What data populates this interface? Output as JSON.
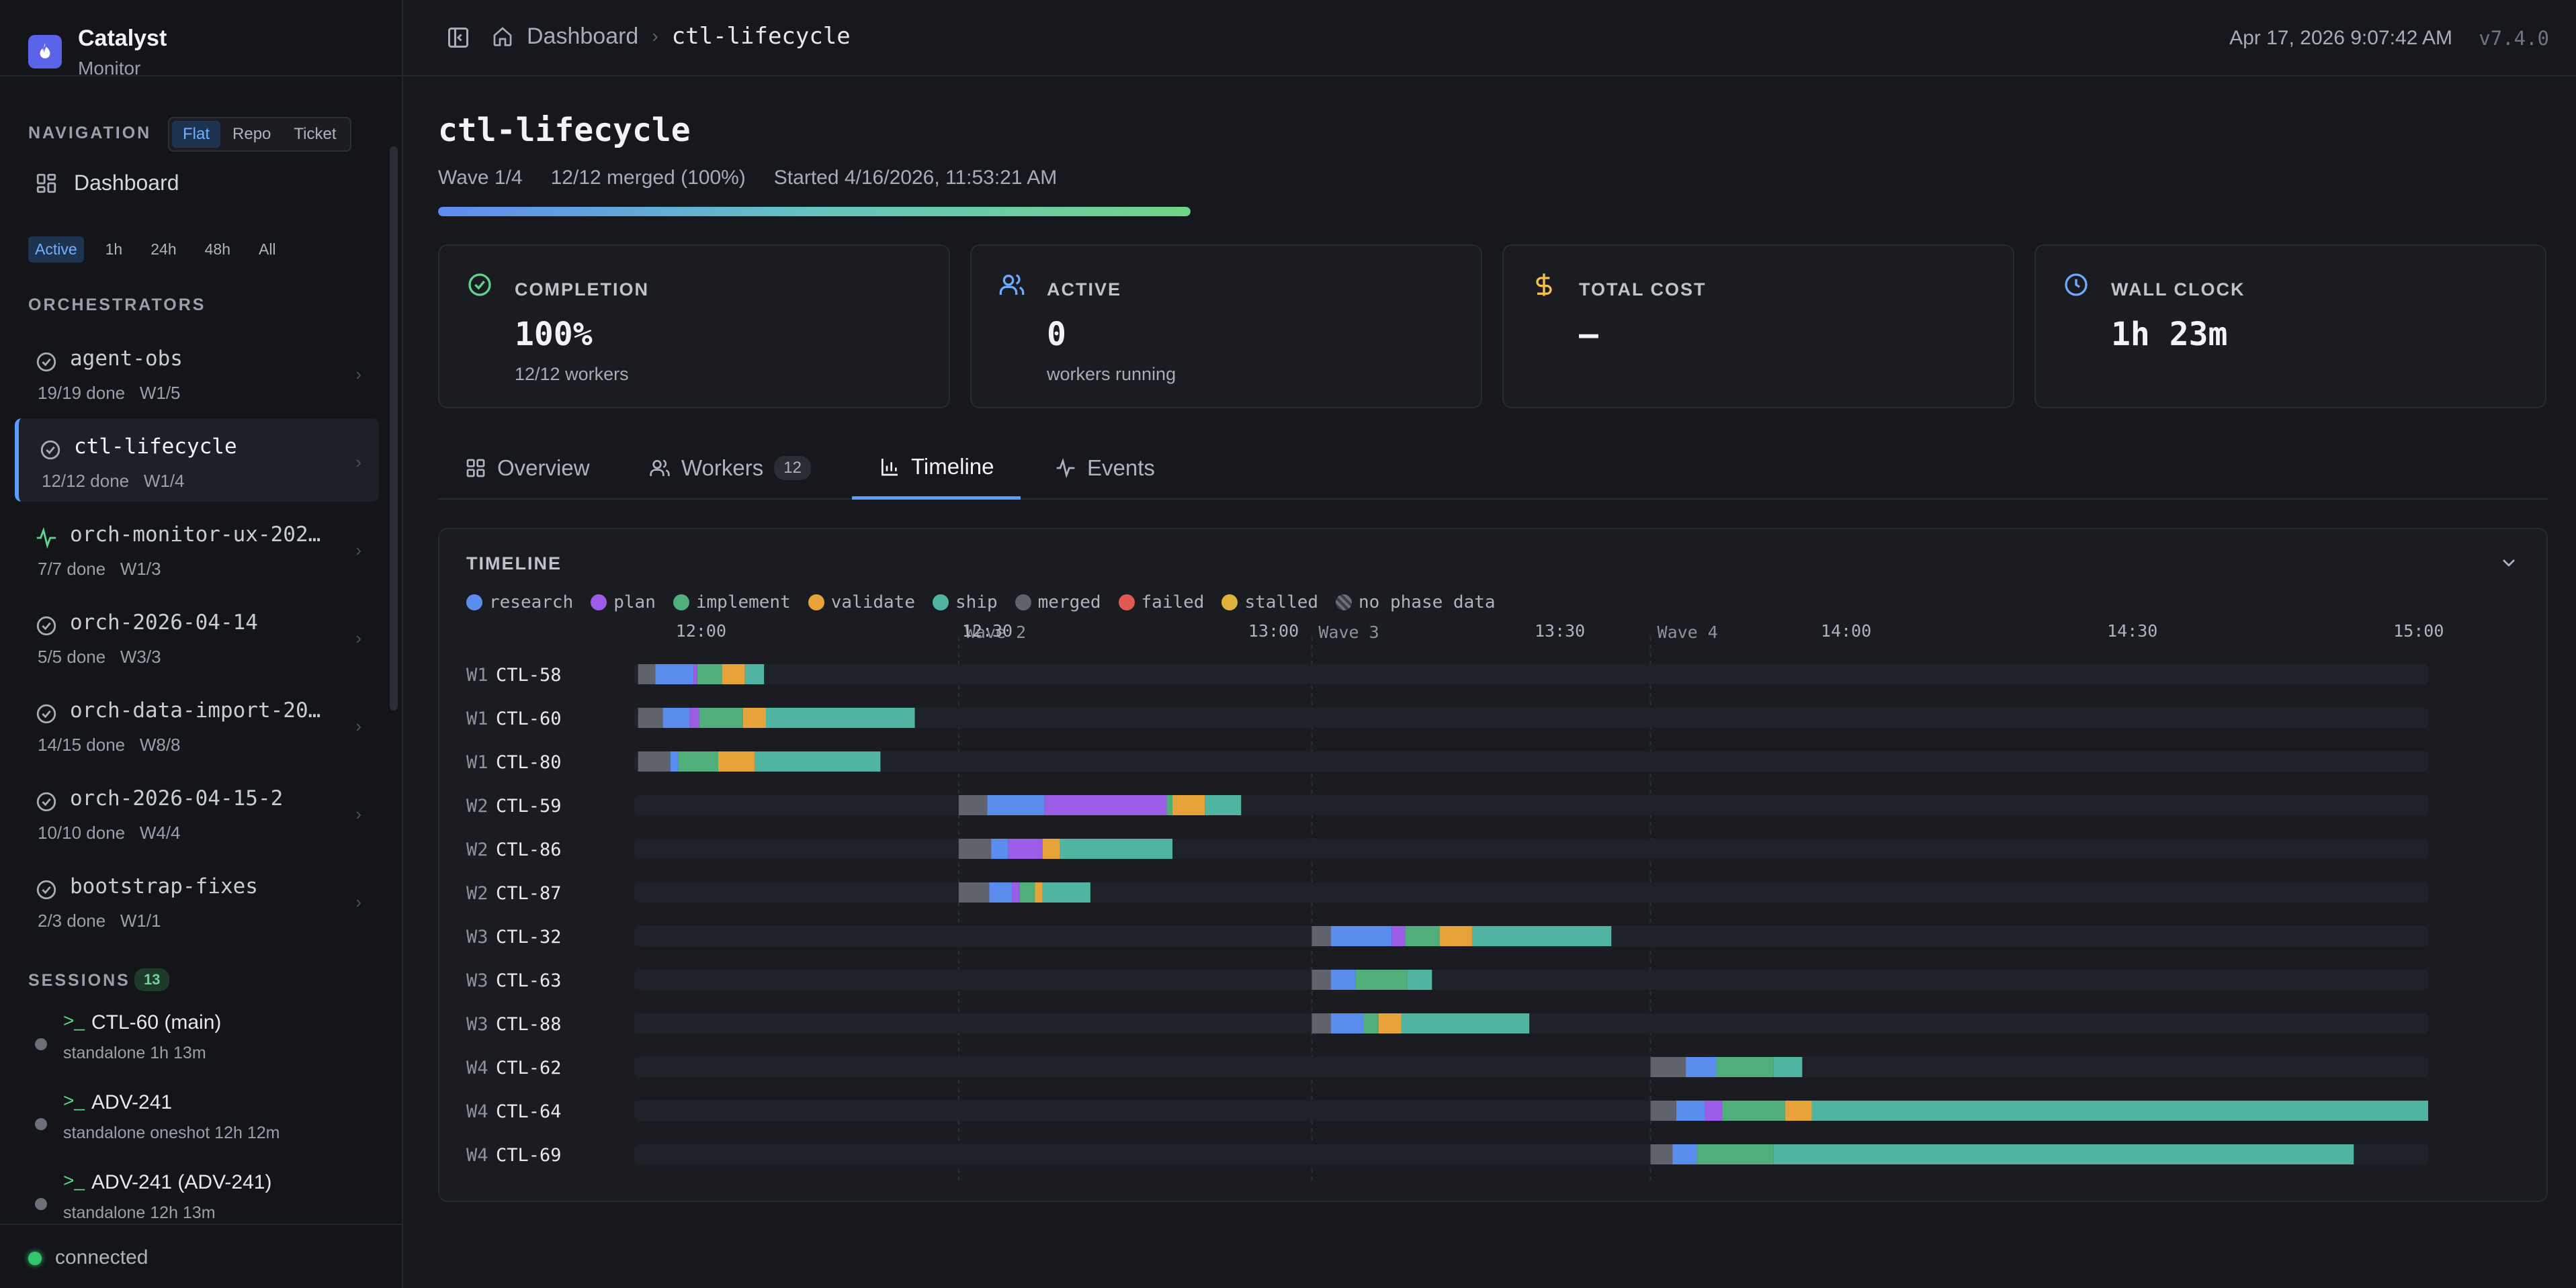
{
  "app": {
    "name": "Catalyst",
    "subtitle": "Monitor"
  },
  "sidebar": {
    "navigation_label": "NAVIGATION",
    "view_modes": [
      "Flat",
      "Repo",
      "Ticket"
    ],
    "active_view_mode": "Flat",
    "dashboard_label": "Dashboard",
    "time_ranges": [
      "Active",
      "1h",
      "24h",
      "48h",
      "All"
    ],
    "active_time_range": "Active",
    "orchestrators_label": "ORCHESTRATORS",
    "orchestrators": [
      {
        "name": "agent-obs",
        "done": "19/19 done",
        "wave": "W1/5",
        "icon": "check-circle-icon",
        "selected": false
      },
      {
        "name": "ctl-lifecycle",
        "done": "12/12 done",
        "wave": "W1/4",
        "icon": "check-circle-icon",
        "selected": true
      },
      {
        "name": "orch-monitor-ux-202…",
        "done": "7/7 done",
        "wave": "W1/3",
        "icon": "activity-icon",
        "selected": false
      },
      {
        "name": "orch-2026-04-14",
        "done": "5/5 done",
        "wave": "W3/3",
        "icon": "check-circle-icon",
        "selected": false
      },
      {
        "name": "orch-data-import-20…",
        "done": "14/15 done",
        "wave": "W8/8",
        "icon": "check-circle-icon",
        "selected": false
      },
      {
        "name": "orch-2026-04-15-2",
        "done": "10/10 done",
        "wave": "W4/4",
        "icon": "check-circle-icon",
        "selected": false
      },
      {
        "name": "bootstrap-fixes",
        "done": "2/3 done",
        "wave": "W1/1",
        "icon": "check-circle-icon",
        "selected": false
      }
    ],
    "sessions_label": "SESSIONS",
    "sessions_count": "13",
    "sessions": [
      {
        "title": "CTL-60 (main)",
        "sub": "standalone   1h 13m"
      },
      {
        "title": "ADV-241",
        "sub": "standalone   oneshot   12h 12m"
      },
      {
        "title": "ADV-241 (ADV-241)",
        "sub": "standalone   12h 13m"
      }
    ],
    "connection_status": "connected"
  },
  "header": {
    "breadcrumb_home": "Dashboard",
    "breadcrumb_current": "ctl-lifecycle",
    "timestamp": "Apr 17, 2026 9:07:42 AM",
    "version": "v7.4.0"
  },
  "page": {
    "title": "ctl-lifecycle",
    "wave": "Wave 1/4",
    "merged": "12/12 merged (100%)",
    "started": "Started 4/16/2026, 11:53:21 AM",
    "progress_fraction": 1.0
  },
  "cards": [
    {
      "label": "COMPLETION",
      "value": "100%",
      "sub": "12/12 workers",
      "icon": "check-circle-icon",
      "color": "#5fd48d"
    },
    {
      "label": "ACTIVE",
      "value": "0",
      "sub": "workers running",
      "icon": "users-icon",
      "color": "#6fa8ff"
    },
    {
      "label": "TOTAL COST",
      "value": "—",
      "sub": "",
      "icon": "dollar-icon",
      "color": "#f2c14e"
    },
    {
      "label": "WALL CLOCK",
      "value": "1h 23m",
      "sub": "",
      "icon": "clock-icon",
      "color": "#6fa8ff"
    }
  ],
  "tabs": [
    {
      "label": "Overview",
      "icon": "grid-icon",
      "count": ""
    },
    {
      "label": "Workers",
      "icon": "users-icon",
      "count": "12"
    },
    {
      "label": "Timeline",
      "icon": "bar-chart-icon",
      "count": ""
    },
    {
      "label": "Events",
      "icon": "activity-icon",
      "count": ""
    }
  ],
  "active_tab": "Timeline",
  "timeline": {
    "title": "TIMELINE",
    "legend": [
      {
        "name": "research",
        "color": "#5b8def"
      },
      {
        "name": "plan",
        "color": "#9b5de5"
      },
      {
        "name": "implement",
        "color": "#4fae7a"
      },
      {
        "name": "validate",
        "color": "#e8a23a"
      },
      {
        "name": "ship",
        "color": "#4fb5a0"
      },
      {
        "name": "merged",
        "color": "#5f636c"
      },
      {
        "name": "failed",
        "color": "#e05a52"
      },
      {
        "name": "stalled",
        "color": "#e0b23a"
      },
      {
        "name": "no phase data",
        "color": "#5f636c"
      }
    ]
  },
  "chart_data": {
    "type": "gantt",
    "x_unit": "minutes since 12:00",
    "xlim": [
      -7,
      181
    ],
    "x_ticks": [
      {
        "label": "12:00",
        "value": 0
      },
      {
        "label": "12:30",
        "value": 30
      },
      {
        "label": "13:00",
        "value": 60
      },
      {
        "label": "13:30",
        "value": 90
      },
      {
        "label": "14:00",
        "value": 120
      },
      {
        "label": "14:30",
        "value": 150
      },
      {
        "label": "15:00",
        "value": 180
      }
    ],
    "waves": [
      {
        "label": "Wave 2",
        "start": 27
      },
      {
        "label": "Wave 3",
        "start": 64
      },
      {
        "label": "Wave 4",
        "start": 99.5
      }
    ],
    "phase_colors": {
      "nodata": "#5f636c",
      "research": "#5b8def",
      "plan": "#9b5de5",
      "implement": "#4fae7a",
      "validate": "#e8a23a",
      "ship": "#4fb5a0"
    },
    "rows": [
      {
        "wave": "W1",
        "ticket": "CTL-58",
        "segments": [
          [
            "nodata",
            -6.6,
            -4.8
          ],
          [
            "research",
            -4.8,
            -0.8
          ],
          [
            "plan",
            -0.8,
            -0.4
          ],
          [
            "implement",
            -0.4,
            2.2
          ],
          [
            "validate",
            2.2,
            4.6
          ],
          [
            "ship",
            4.6,
            6.6
          ]
        ]
      },
      {
        "wave": "W1",
        "ticket": "CTL-60",
        "segments": [
          [
            "nodata",
            -6.6,
            -4
          ],
          [
            "research",
            -4,
            -1.2
          ],
          [
            "plan",
            -1.2,
            -0.2
          ],
          [
            "implement",
            -0.2,
            4.4
          ],
          [
            "validate",
            4.4,
            6.8
          ],
          [
            "ship",
            6.8,
            22.4
          ]
        ]
      },
      {
        "wave": "W1",
        "ticket": "CTL-80",
        "segments": [
          [
            "nodata",
            -6.6,
            -3.2
          ],
          [
            "research",
            -3.2,
            -2.4
          ],
          [
            "implement",
            -2.4,
            1.8
          ],
          [
            "validate",
            1.8,
            5.6
          ],
          [
            "ship",
            5.6,
            18.8
          ]
        ]
      },
      {
        "wave": "W2",
        "ticket": "CTL-59",
        "segments": [
          [
            "nodata",
            27,
            30
          ],
          [
            "research",
            30,
            36
          ],
          [
            "plan",
            36,
            48.8
          ],
          [
            "implement",
            48.8,
            49.4
          ],
          [
            "validate",
            49.4,
            52.8
          ],
          [
            "ship",
            52.8,
            56.6
          ]
        ]
      },
      {
        "wave": "W2",
        "ticket": "CTL-86",
        "segments": [
          [
            "nodata",
            27,
            30.4
          ],
          [
            "research",
            30.4,
            32.2
          ],
          [
            "plan",
            32.2,
            35.8
          ],
          [
            "validate",
            35.8,
            37.6
          ],
          [
            "ship",
            37.6,
            49.4
          ]
        ]
      },
      {
        "wave": "W2",
        "ticket": "CTL-87",
        "segments": [
          [
            "nodata",
            27,
            30.2
          ],
          [
            "research",
            30.2,
            32.6
          ],
          [
            "plan",
            32.6,
            33.4
          ],
          [
            "implement",
            33.4,
            35
          ],
          [
            "validate",
            35,
            35.8
          ],
          [
            "ship",
            35.8,
            40.8
          ]
        ]
      },
      {
        "wave": "W3",
        "ticket": "CTL-32",
        "segments": [
          [
            "nodata",
            64,
            66
          ],
          [
            "research",
            66,
            72.4
          ],
          [
            "plan",
            72.4,
            73.8
          ],
          [
            "implement",
            73.8,
            77.4
          ],
          [
            "validate",
            77.4,
            80.8
          ],
          [
            "ship",
            80.8,
            95.4
          ]
        ]
      },
      {
        "wave": "W3",
        "ticket": "CTL-63",
        "segments": [
          [
            "nodata",
            64,
            66
          ],
          [
            "research",
            66,
            68.6
          ],
          [
            "implement",
            68.6,
            74
          ],
          [
            "ship",
            74,
            76.6
          ]
        ]
      },
      {
        "wave": "W3",
        "ticket": "CTL-88",
        "segments": [
          [
            "nodata",
            64,
            66
          ],
          [
            "research",
            66,
            69.4
          ],
          [
            "implement",
            69.4,
            71
          ],
          [
            "validate",
            71,
            73.4
          ],
          [
            "ship",
            73.4,
            86.8
          ]
        ]
      },
      {
        "wave": "W4",
        "ticket": "CTL-62",
        "segments": [
          [
            "nodata",
            99.5,
            103.2
          ],
          [
            "research",
            103.2,
            106.4
          ],
          [
            "implement",
            106.4,
            112.4
          ],
          [
            "ship",
            112.4,
            115.4
          ]
        ]
      },
      {
        "wave": "W4",
        "ticket": "CTL-64",
        "segments": [
          [
            "nodata",
            99.5,
            102.2
          ],
          [
            "research",
            102.2,
            105.2
          ],
          [
            "plan",
            105.2,
            107
          ],
          [
            "implement",
            107,
            113.6
          ],
          [
            "validate",
            113.6,
            116.4
          ],
          [
            "ship",
            116.4,
            181
          ]
        ]
      },
      {
        "wave": "W4",
        "ticket": "CTL-69",
        "segments": [
          [
            "nodata",
            99.5,
            101.8
          ],
          [
            "research",
            101.8,
            104.4
          ],
          [
            "implement",
            104.4,
            112.4
          ],
          [
            "ship",
            112.4,
            173.2
          ]
        ]
      }
    ]
  }
}
